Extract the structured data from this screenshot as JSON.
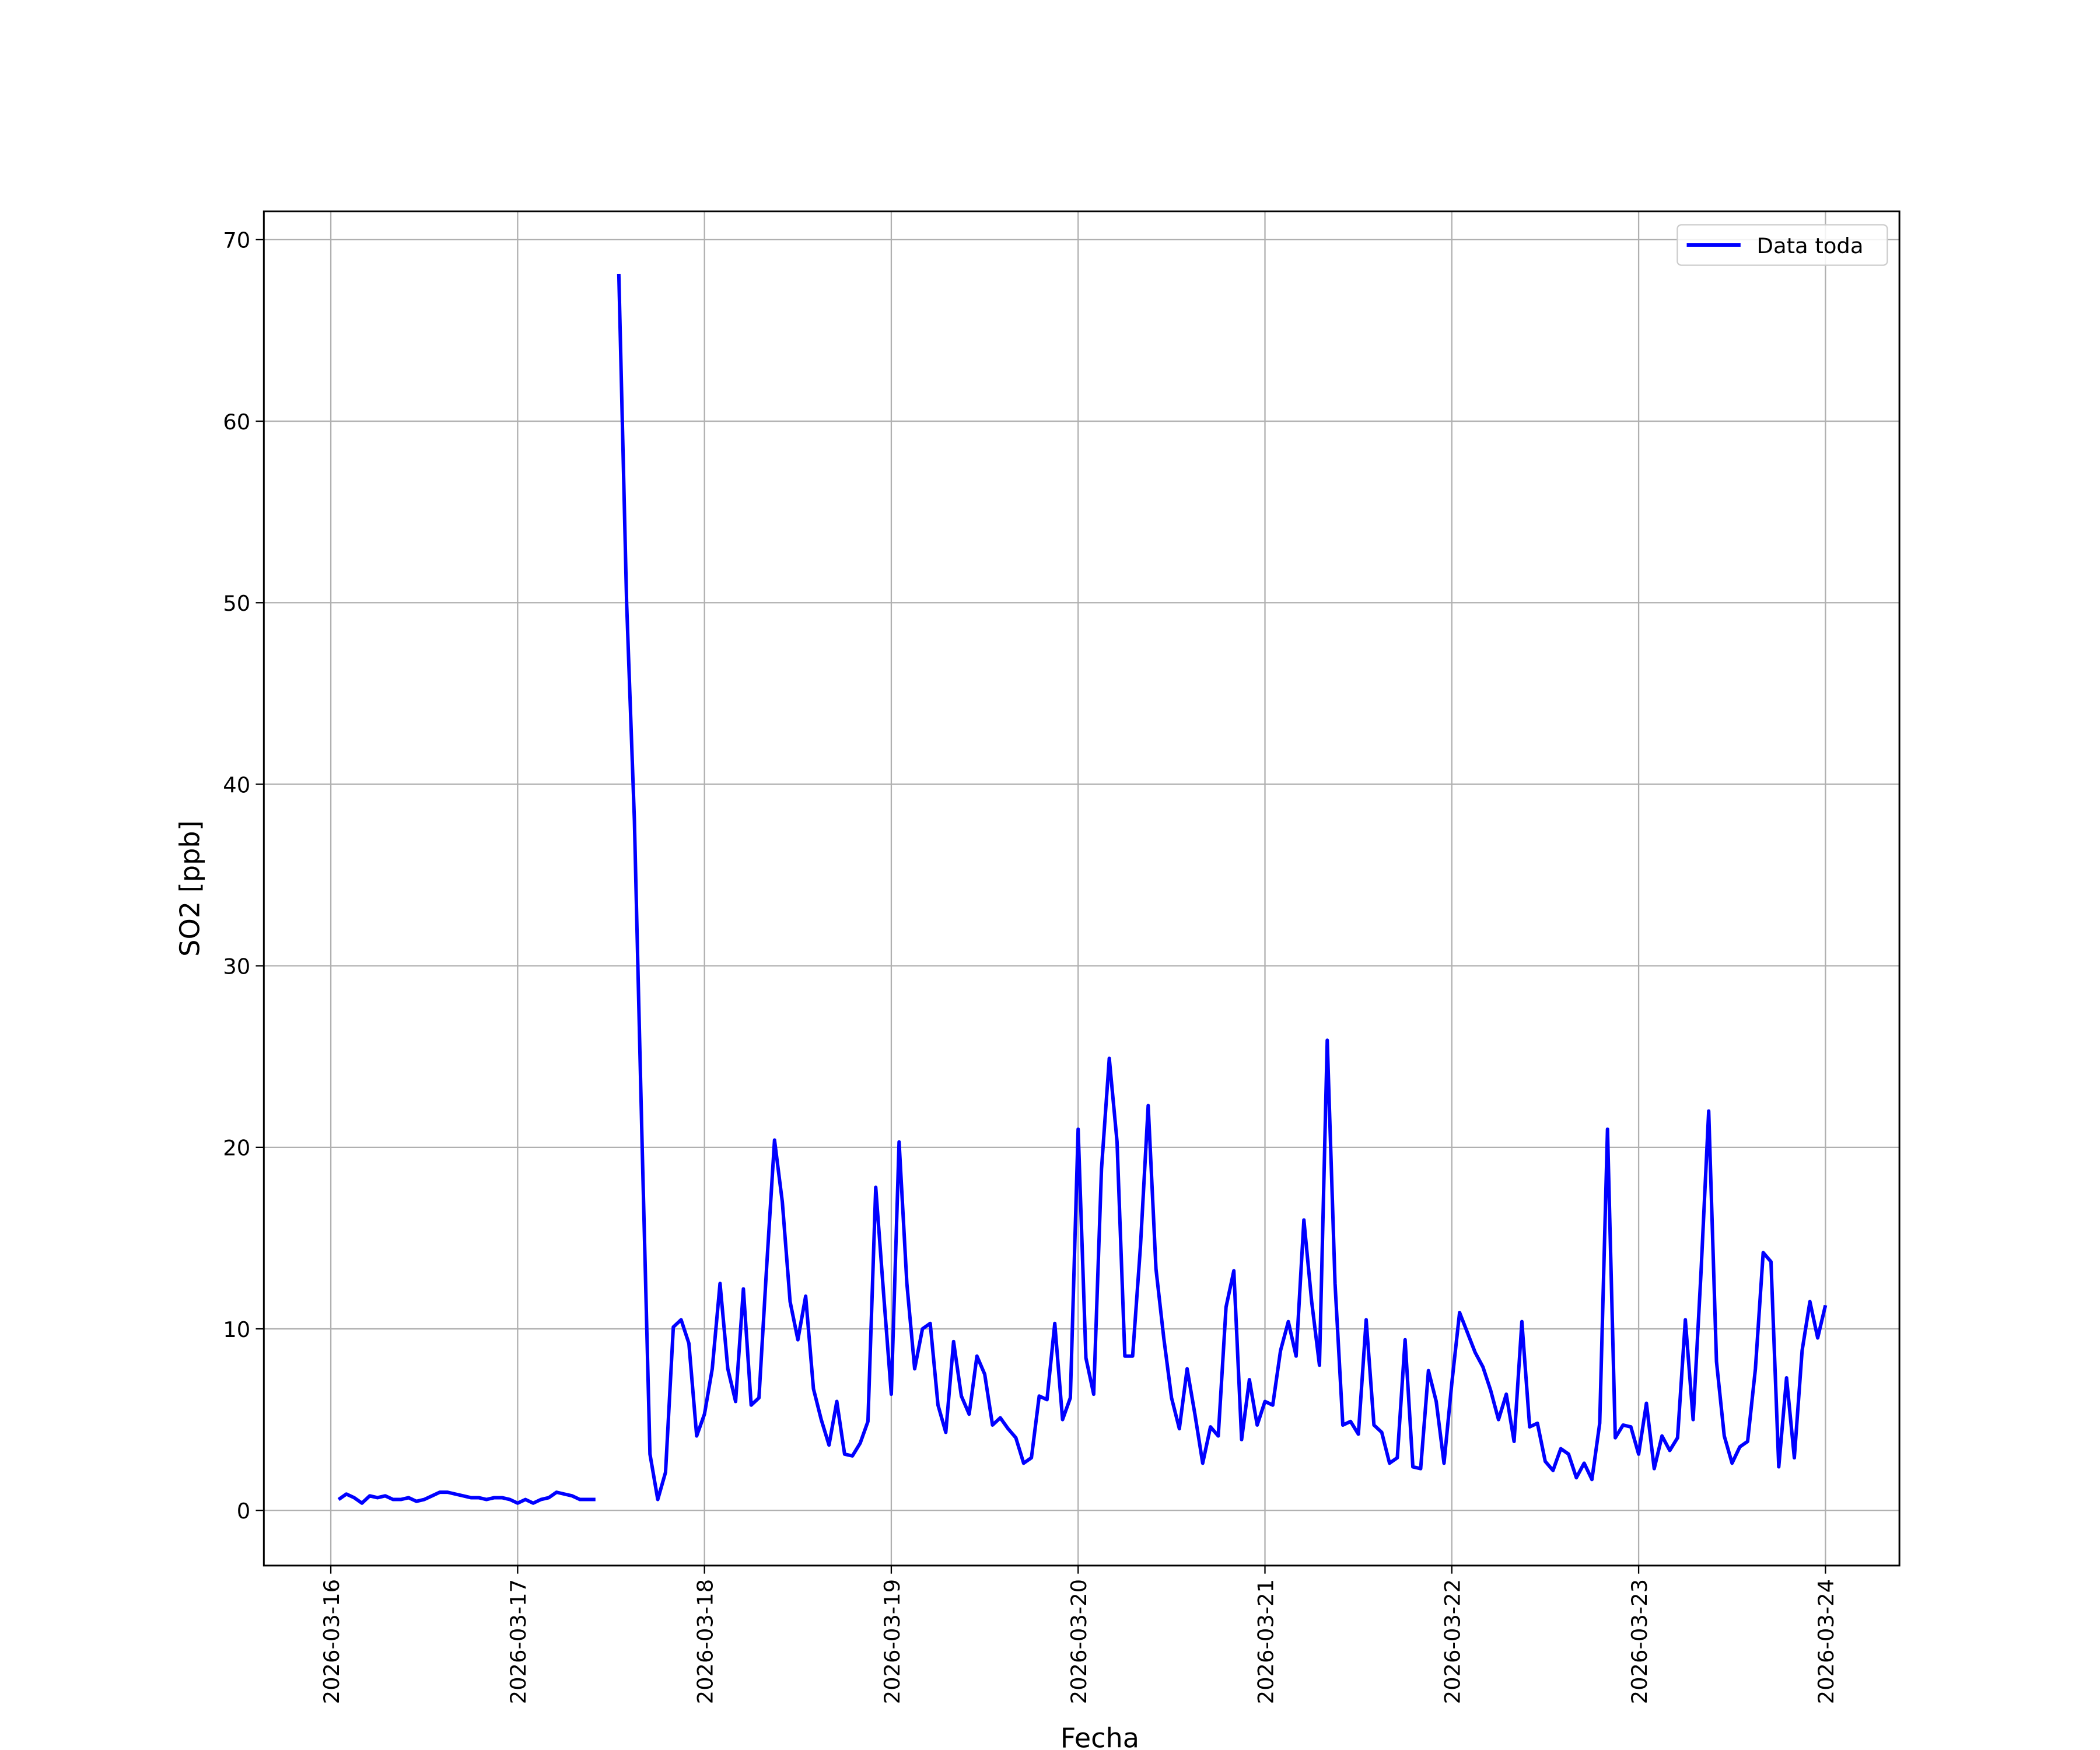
{
  "chart_data": {
    "type": "line",
    "xlabel": "Fecha",
    "ylabel": "SO2 [ppb]",
    "x": [
      1,
      2,
      3,
      4,
      5,
      6,
      7,
      8,
      9,
      10,
      11,
      12,
      13,
      14,
      15,
      16,
      17,
      18,
      19,
      20,
      21,
      22,
      23,
      24,
      25,
      26,
      27,
      28,
      29,
      30,
      31,
      32,
      33,
      34,
      35,
      36,
      37,
      38,
      39,
      40,
      41,
      42,
      43,
      44,
      45,
      46,
      47,
      48,
      49,
      50,
      51,
      52,
      53,
      54,
      55,
      56,
      57,
      58,
      59,
      60,
      61,
      62,
      63,
      64,
      65,
      66,
      67,
      68,
      69,
      70,
      71,
      72,
      73,
      74,
      75,
      76,
      77,
      78,
      79,
      80,
      81,
      82,
      83,
      84,
      85,
      86,
      87,
      88,
      89,
      90,
      91,
      92,
      93,
      94,
      95,
      96,
      97,
      98,
      99,
      100,
      101,
      102,
      103,
      104,
      105,
      106,
      107,
      108,
      109,
      110,
      111,
      112,
      113,
      114,
      115,
      116,
      117,
      118,
      119,
      120,
      121,
      122,
      123,
      124,
      125,
      126,
      127,
      128,
      129,
      130,
      131,
      132,
      133,
      134,
      135,
      136,
      137,
      138,
      139,
      140,
      141,
      142,
      143,
      144,
      145,
      146,
      147,
      148,
      149,
      150,
      151,
      152,
      153,
      154,
      155,
      156,
      157,
      158,
      159,
      160,
      161,
      162,
      163,
      164,
      165,
      166,
      167,
      168,
      169,
      170,
      171,
      172,
      173,
      174,
      175,
      176,
      177,
      178,
      179,
      180,
      181,
      182,
      183,
      184,
      185,
      186,
      187,
      188,
      189,
      190,
      191,
      192
    ],
    "series": [
      {
        "name": "Data toda",
        "color": "#0000ff",
        "values": [
          0.6,
          0.9,
          0.7,
          0.4,
          0.8,
          0.7,
          0.8,
          0.6,
          0.6,
          0.7,
          0.5,
          0.6,
          0.8,
          1.0,
          1.0,
          0.9,
          0.8,
          0.7,
          0.7,
          0.6,
          0.7,
          0.7,
          0.6,
          0.4,
          0.6,
          0.4,
          0.6,
          0.7,
          1.0,
          0.9,
          0.8,
          0.6,
          0.6,
          0.6,
          null,
          null,
          68.1,
          50,
          38,
          20,
          3.1,
          0.6,
          2.1,
          10.1,
          10.5,
          9.2,
          4.1,
          5.3,
          7.8,
          12.5,
          7.8,
          6.0,
          12.2,
          5.8,
          6.2,
          13.5,
          20.4,
          17.0,
          11.5,
          9.4,
          11.8,
          6.7,
          5.0,
          3.6,
          6.0,
          3.1,
          3.0,
          3.7,
          4.9,
          17.8,
          12.0,
          6.4,
          20.3,
          12.5,
          7.8,
          10.0,
          10.3,
          5.8,
          4.3,
          9.3,
          6.3,
          5.3,
          8.5,
          7.5,
          4.7,
          5.1,
          4.5,
          4.0,
          2.6,
          2.9,
          6.3,
          6.1,
          10.3,
          5.0,
          6.2,
          21.0,
          8.4,
          6.4,
          18.8,
          24.9,
          20.3,
          8.5,
          8.5,
          14.5,
          22.3,
          13.3,
          9.5,
          6.2,
          4.5,
          7.8,
          5.3,
          2.6,
          4.6,
          4.1,
          11.2,
          13.2,
          3.9,
          7.2,
          4.7,
          6.0,
          5.8,
          8.8,
          10.4,
          8.5,
          16.0,
          11.5,
          8.0,
          25.9,
          12.5,
          4.7,
          4.9,
          4.2,
          10.5,
          4.7,
          4.3,
          2.6,
          2.9,
          9.4,
          2.4,
          2.3,
          7.7,
          6.0,
          2.6,
          7.0,
          10.9,
          9.8,
          8.7,
          7.9,
          6.6,
          5.0,
          6.4,
          3.8,
          10.4,
          4.6,
          4.8,
          2.7,
          2.2,
          3.4,
          3.1,
          1.8,
          2.6,
          1.7,
          4.8,
          21.0,
          4.0,
          4.7,
          4.6,
          3.1,
          5.9,
          2.3,
          4.1,
          3.3,
          4.0,
          10.5,
          5.0,
          13.0,
          22.0,
          8.2,
          4.1,
          2.6,
          3.5,
          3.8,
          7.8,
          14.2,
          13.7,
          2.4,
          7.3,
          2.9,
          8.8,
          11.5,
          9.5,
          11.3
        ]
      }
    ],
    "xlim": [
      -8.6,
      201.5
    ],
    "xticks": [
      {
        "value": 0,
        "label": "2026-03-16"
      },
      {
        "value": 24,
        "label": "2026-03-17"
      },
      {
        "value": 48,
        "label": "2026-03-18"
      },
      {
        "value": 72,
        "label": "2026-03-19"
      },
      {
        "value": 96,
        "label": "2026-03-20"
      },
      {
        "value": 120,
        "label": "2026-03-21"
      },
      {
        "value": 144,
        "label": "2026-03-22"
      },
      {
        "value": 168,
        "label": "2026-03-23"
      },
      {
        "value": 192,
        "label": "2026-03-24"
      }
    ],
    "ylim": [
      -3.04,
      71.56
    ],
    "yticks": [
      0,
      10,
      20,
      30,
      40,
      50,
      60,
      70
    ],
    "grid": true,
    "legend": "upper right"
  }
}
